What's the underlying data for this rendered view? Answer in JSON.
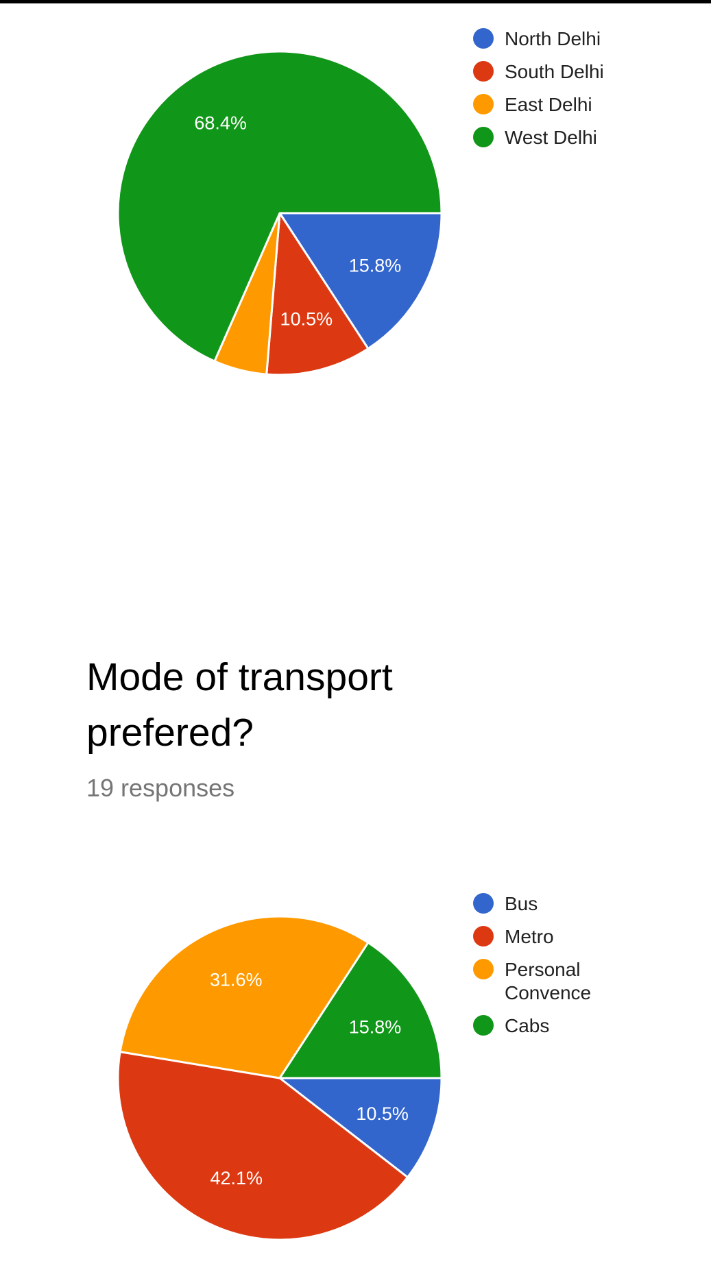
{
  "question": {
    "title": "Mode of transport prefered?",
    "responses": "19 responses"
  },
  "chart_data": [
    {
      "type": "pie",
      "categories": [
        "North Delhi",
        "South Delhi",
        "East Delhi",
        "West Delhi"
      ],
      "values": [
        15.8,
        10.5,
        5.3,
        68.4
      ],
      "labels": [
        "15.8%",
        "10.5%",
        "",
        "68.4%"
      ],
      "colors": [
        "#3366cc",
        "#dc3912",
        "#ff9900",
        "#109618"
      ],
      "legend_position": "right"
    },
    {
      "type": "pie",
      "categories": [
        "Bus",
        "Metro",
        "Personal Convence",
        "Cabs"
      ],
      "values": [
        10.5,
        42.1,
        31.6,
        15.8
      ],
      "labels": [
        "10.5%",
        "42.1%",
        "31.6%",
        "15.8%"
      ],
      "colors": [
        "#3366cc",
        "#dc3912",
        "#ff9900",
        "#109618"
      ],
      "legend_position": "right"
    }
  ]
}
